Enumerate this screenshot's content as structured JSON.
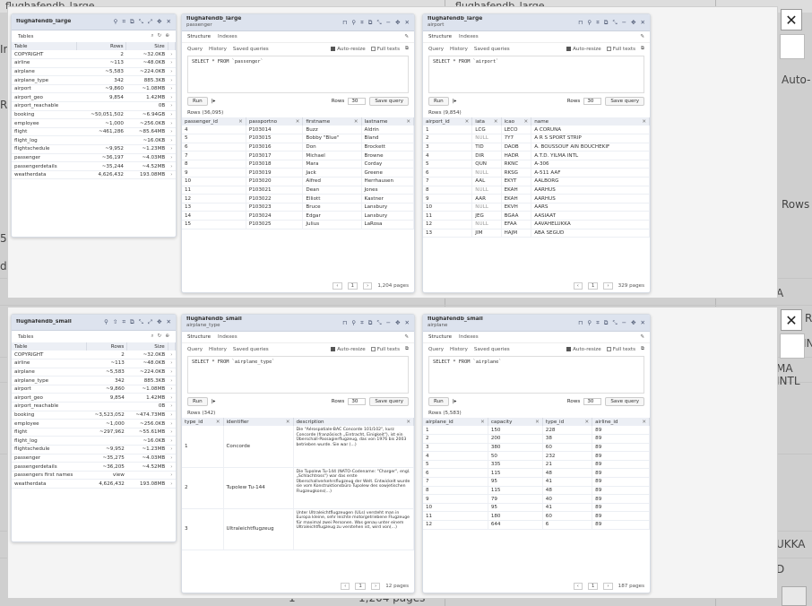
{
  "background": {
    "title": "flughafendb_large",
    "texts": [
      {
        "id": "bg-auto",
        "text": "Auto-"
      },
      {
        "id": "bg-rows",
        "text": "Rows"
      },
      {
        "id": "bg-ir",
        "text": "Ir"
      },
      {
        "id": "bg-r",
        "text": "R"
      },
      {
        "id": "bg-5",
        "text": "5)"
      },
      {
        "id": "bg-d",
        "text": "d"
      },
      {
        "id": "bg-a",
        "text": "A"
      },
      {
        "id": "bg-r2",
        "text": "R"
      },
      {
        "id": "bg-in",
        "text": "IN"
      },
      {
        "id": "bg-ma",
        "text": "MA INTL"
      },
      {
        "id": "bg-ukka",
        "text": "UKKA"
      },
      {
        "id": "bg-d2",
        "text": "D"
      },
      {
        "id": "bg-pages",
        "text": "1,204 pages"
      },
      {
        "id": "bg-one",
        "text": "1"
      }
    ]
  },
  "top": {
    "tables_panel": {
      "title": "flughafendb_large",
      "heading": "Tables",
      "columns": [
        "Table",
        "Rows",
        "Size"
      ],
      "rows": [
        {
          "name": "COPYRIGHT",
          "rows": "2",
          "size": "~32.0KB"
        },
        {
          "name": "airline",
          "rows": "~113",
          "size": "~48.0KB"
        },
        {
          "name": "airplane",
          "rows": "~5,583",
          "size": "~224.0KB"
        },
        {
          "name": "airplane_type",
          "rows": "342",
          "size": "885.3KB"
        },
        {
          "name": "airport",
          "rows": "~9,860",
          "size": "~1.08MB"
        },
        {
          "name": "airport_geo",
          "rows": "9,854",
          "size": "1.42MB"
        },
        {
          "name": "airport_reachable",
          "rows": "",
          "size": "0B"
        },
        {
          "name": "booking",
          "rows": "~50,051,502",
          "size": "~6.94GB"
        },
        {
          "name": "employee",
          "rows": "~1,000",
          "size": "~256.0KB"
        },
        {
          "name": "flight",
          "rows": "~461,286",
          "size": "~85.64MB"
        },
        {
          "name": "flight_log",
          "rows": "",
          "size": "~16.0KB"
        },
        {
          "name": "flightschedule",
          "rows": "~9,952",
          "size": "~1.23MB"
        },
        {
          "name": "passenger",
          "rows": "~36,197",
          "size": "~4.03MB"
        },
        {
          "name": "passengerdetails",
          "rows": "~35,244",
          "size": "~4.52MB"
        },
        {
          "name": "weatherdata",
          "rows": "4,626,432",
          "size": "193.08MB"
        }
      ]
    },
    "passenger_panel": {
      "title": "flughafendb_large",
      "subtitle": "passenger",
      "tabs": [
        "Structure",
        "Indexes"
      ],
      "query_tabs": [
        "Query",
        "History",
        "Saved queries"
      ],
      "auto_resize": "Auto-resize",
      "full_texts": "Full texts",
      "sql": "SELECT * FROM `passenger`",
      "run": "Run",
      "rows_label": "Rows",
      "rows_value": "30",
      "save": "Save query",
      "count": "Rows (36,095)",
      "columns": [
        "passenger_id",
        "passportno",
        "firstname",
        "lastname"
      ],
      "rows": [
        [
          "4",
          "P103014",
          "Buzz",
          "Aldrin"
        ],
        [
          "5",
          "P103015",
          "Bobby \"Blue\"",
          "Bland"
        ],
        [
          "6",
          "P103016",
          "Don",
          "Brockett"
        ],
        [
          "7",
          "P103017",
          "Michael",
          "Browne"
        ],
        [
          "8",
          "P103018",
          "Mara",
          "Corday"
        ],
        [
          "9",
          "P103019",
          "Jack",
          "Greene"
        ],
        [
          "10",
          "P103020",
          "Alfred",
          "Herrhausen"
        ],
        [
          "11",
          "P103021",
          "Dean",
          "Jones"
        ],
        [
          "12",
          "P103022",
          "Elliott",
          "Kastner"
        ],
        [
          "13",
          "P103023",
          "Bruce",
          "Lansbury"
        ],
        [
          "14",
          "P103024",
          "Edgar",
          "Lansbury"
        ],
        [
          "15",
          "P103025",
          "Julius",
          "LaRosa"
        ]
      ],
      "page": "1",
      "pages": "1,204 pages"
    },
    "airport_panel": {
      "title": "flughafendb_large",
      "subtitle": "airport",
      "tabs": [
        "Structure",
        "Indexes"
      ],
      "query_tabs": [
        "Query",
        "History",
        "Saved queries"
      ],
      "auto_resize": "Auto-resize",
      "full_texts": "Full texts",
      "sql": "SELECT * FROM `airport`",
      "run": "Run",
      "rows_label": "Rows",
      "rows_value": "30",
      "save": "Save query",
      "count": "Rows (9,854)",
      "columns": [
        "airport_id",
        "iata",
        "icao",
        "name"
      ],
      "rows": [
        [
          "1",
          "LCG",
          "LECO",
          "A CORUNA"
        ],
        [
          "2",
          "NULL",
          "7Y7",
          "A R S SPORT STRIP"
        ],
        [
          "3",
          "TID",
          "DAOB",
          "A. BOUSSOUF AIN BOUCHEKIF"
        ],
        [
          "4",
          "DIR",
          "HADR",
          "A.T.D. YILMA INTL"
        ],
        [
          "5",
          "QUN",
          "RKNC",
          "A-306"
        ],
        [
          "6",
          "NULL",
          "RKSG",
          "A-511 AAF"
        ],
        [
          "7",
          "AAL",
          "EKYT",
          "AALBORG"
        ],
        [
          "8",
          "NULL",
          "EKAH",
          "AARHUS"
        ],
        [
          "9",
          "AAR",
          "EKAH",
          "AARHUS"
        ],
        [
          "10",
          "NULL",
          "EKVH",
          "AARS"
        ],
        [
          "11",
          "JEG",
          "BGAA",
          "AASIAAT"
        ],
        [
          "12",
          "NULL",
          "EFAA",
          "AAVAHELUKKA"
        ],
        [
          "13",
          "JIM",
          "HAJM",
          "ABA SEGUD"
        ]
      ],
      "page": "1",
      "pages": "329 pages"
    }
  },
  "bottom": {
    "tables_panel": {
      "title": "flughafendb_small",
      "heading": "Tables",
      "columns": [
        "Table",
        "Rows",
        "Size"
      ],
      "rows": [
        {
          "name": "COPYRIGHT",
          "rows": "2",
          "size": "~32.0KB"
        },
        {
          "name": "airline",
          "rows": "~113",
          "size": "~48.0KB"
        },
        {
          "name": "airplane",
          "rows": "~5,583",
          "size": "~224.0KB"
        },
        {
          "name": "airplane_type",
          "rows": "342",
          "size": "885.3KB"
        },
        {
          "name": "airport",
          "rows": "~9,860",
          "size": "~1.08MB"
        },
        {
          "name": "airport_geo",
          "rows": "9,854",
          "size": "1.42MB"
        },
        {
          "name": "airport_reachable",
          "rows": "",
          "size": "0B"
        },
        {
          "name": "booking",
          "rows": "~3,523,052",
          "size": "~474.73MB"
        },
        {
          "name": "employee",
          "rows": "~1,000",
          "size": "~256.0KB"
        },
        {
          "name": "flight",
          "rows": "~297,962",
          "size": "~55.61MB"
        },
        {
          "name": "flight_log",
          "rows": "",
          "size": "~16.0KB"
        },
        {
          "name": "flightschedule",
          "rows": "~9,952",
          "size": "~1.23MB"
        },
        {
          "name": "passenger",
          "rows": "~35,275",
          "size": "~4.03MB"
        },
        {
          "name": "passengerdetails",
          "rows": "~36,205",
          "size": "~4.52MB"
        },
        {
          "name": "passengers first names",
          "rows": "view",
          "size": ""
        },
        {
          "name": "weatherdata",
          "rows": "4,626,432",
          "size": "193.08MB"
        }
      ]
    },
    "airplane_type_panel": {
      "title": "flughafendb_small",
      "subtitle": "airplane_type",
      "tabs": [
        "Structure",
        "Indexes"
      ],
      "query_tabs": [
        "Query",
        "History",
        "Saved queries"
      ],
      "auto_resize": "Auto-resize",
      "full_texts": "Full texts",
      "sql": "SELECT * FROM `airplane_type`",
      "run": "Run",
      "rows_label": "Rows",
      "rows_value": "30",
      "save": "Save query",
      "count": "Rows (342)",
      "columns": [
        "type_id",
        "identifier",
        "description"
      ],
      "rows": [
        [
          "1",
          "Concorde",
          "Die \"Aérospatiale-BAC Concorde 101/102\", kurz Concorde (französisch „Eintracht, Einigkeit\"), ist ein Überschall-Passagierflugzeug, das von 1976 bis 2003 betrieben wurde. Sie war (...)"
        ],
        [
          "2",
          "Tupolew Tu-144",
          "Die Tupolew Tu-144 (NATO-Codename: \"Charger\", engl. „Schlachtross\") war das erste Überschallverkehrsflugzeug der Welt. Entwickelt wurde sie vom Konstruktionsbüro Tupolew des sowjetischen Flugzeugkons(...)"
        ],
        [
          "3",
          "Ultraleichtflugzeug",
          "Unter Ultraleichtflugzeugen (ULs) versteht man in Europa kleine, sehr leichte motorgetriebene Flugzeuge für maximal zwei Personen. Was genau unter einem Ultraleichtflugzeug zu verstehen ist, wird von(...)"
        ]
      ],
      "page": "1",
      "pages": "12 pages"
    },
    "airplane_panel": {
      "title": "flughafendb_small",
      "subtitle": "airplane",
      "tabs": [
        "Structure",
        "Indexes"
      ],
      "query_tabs": [
        "Query",
        "History",
        "Saved queries"
      ],
      "auto_resize": "Auto-resize",
      "full_texts": "Full texts",
      "sql": "SELECT * FROM `airplane`",
      "run": "Run",
      "rows_label": "Rows",
      "rows_value": "30",
      "save": "Save query",
      "count": "Rows (5,583)",
      "columns": [
        "airplane_id",
        "capacity",
        "type_id",
        "airline_id"
      ],
      "rows": [
        [
          "1",
          "150",
          "228",
          "89"
        ],
        [
          "2",
          "200",
          "38",
          "89"
        ],
        [
          "3",
          "380",
          "60",
          "89"
        ],
        [
          "4",
          "50",
          "232",
          "89"
        ],
        [
          "5",
          "335",
          "21",
          "89"
        ],
        [
          "6",
          "115",
          "48",
          "89"
        ],
        [
          "7",
          "95",
          "41",
          "89"
        ],
        [
          "8",
          "115",
          "48",
          "89"
        ],
        [
          "9",
          "79",
          "40",
          "89"
        ],
        [
          "10",
          "95",
          "41",
          "89"
        ],
        [
          "11",
          "180",
          "60",
          "89"
        ],
        [
          "12",
          "644",
          "6",
          "89"
        ]
      ],
      "page": "1",
      "pages": "187 pages"
    }
  },
  "close_symbol": "✕",
  "colors": {
    "panel_header": "#dde3ee",
    "dialog": "#f4f4f4",
    "background": "#cfcfcf"
  }
}
